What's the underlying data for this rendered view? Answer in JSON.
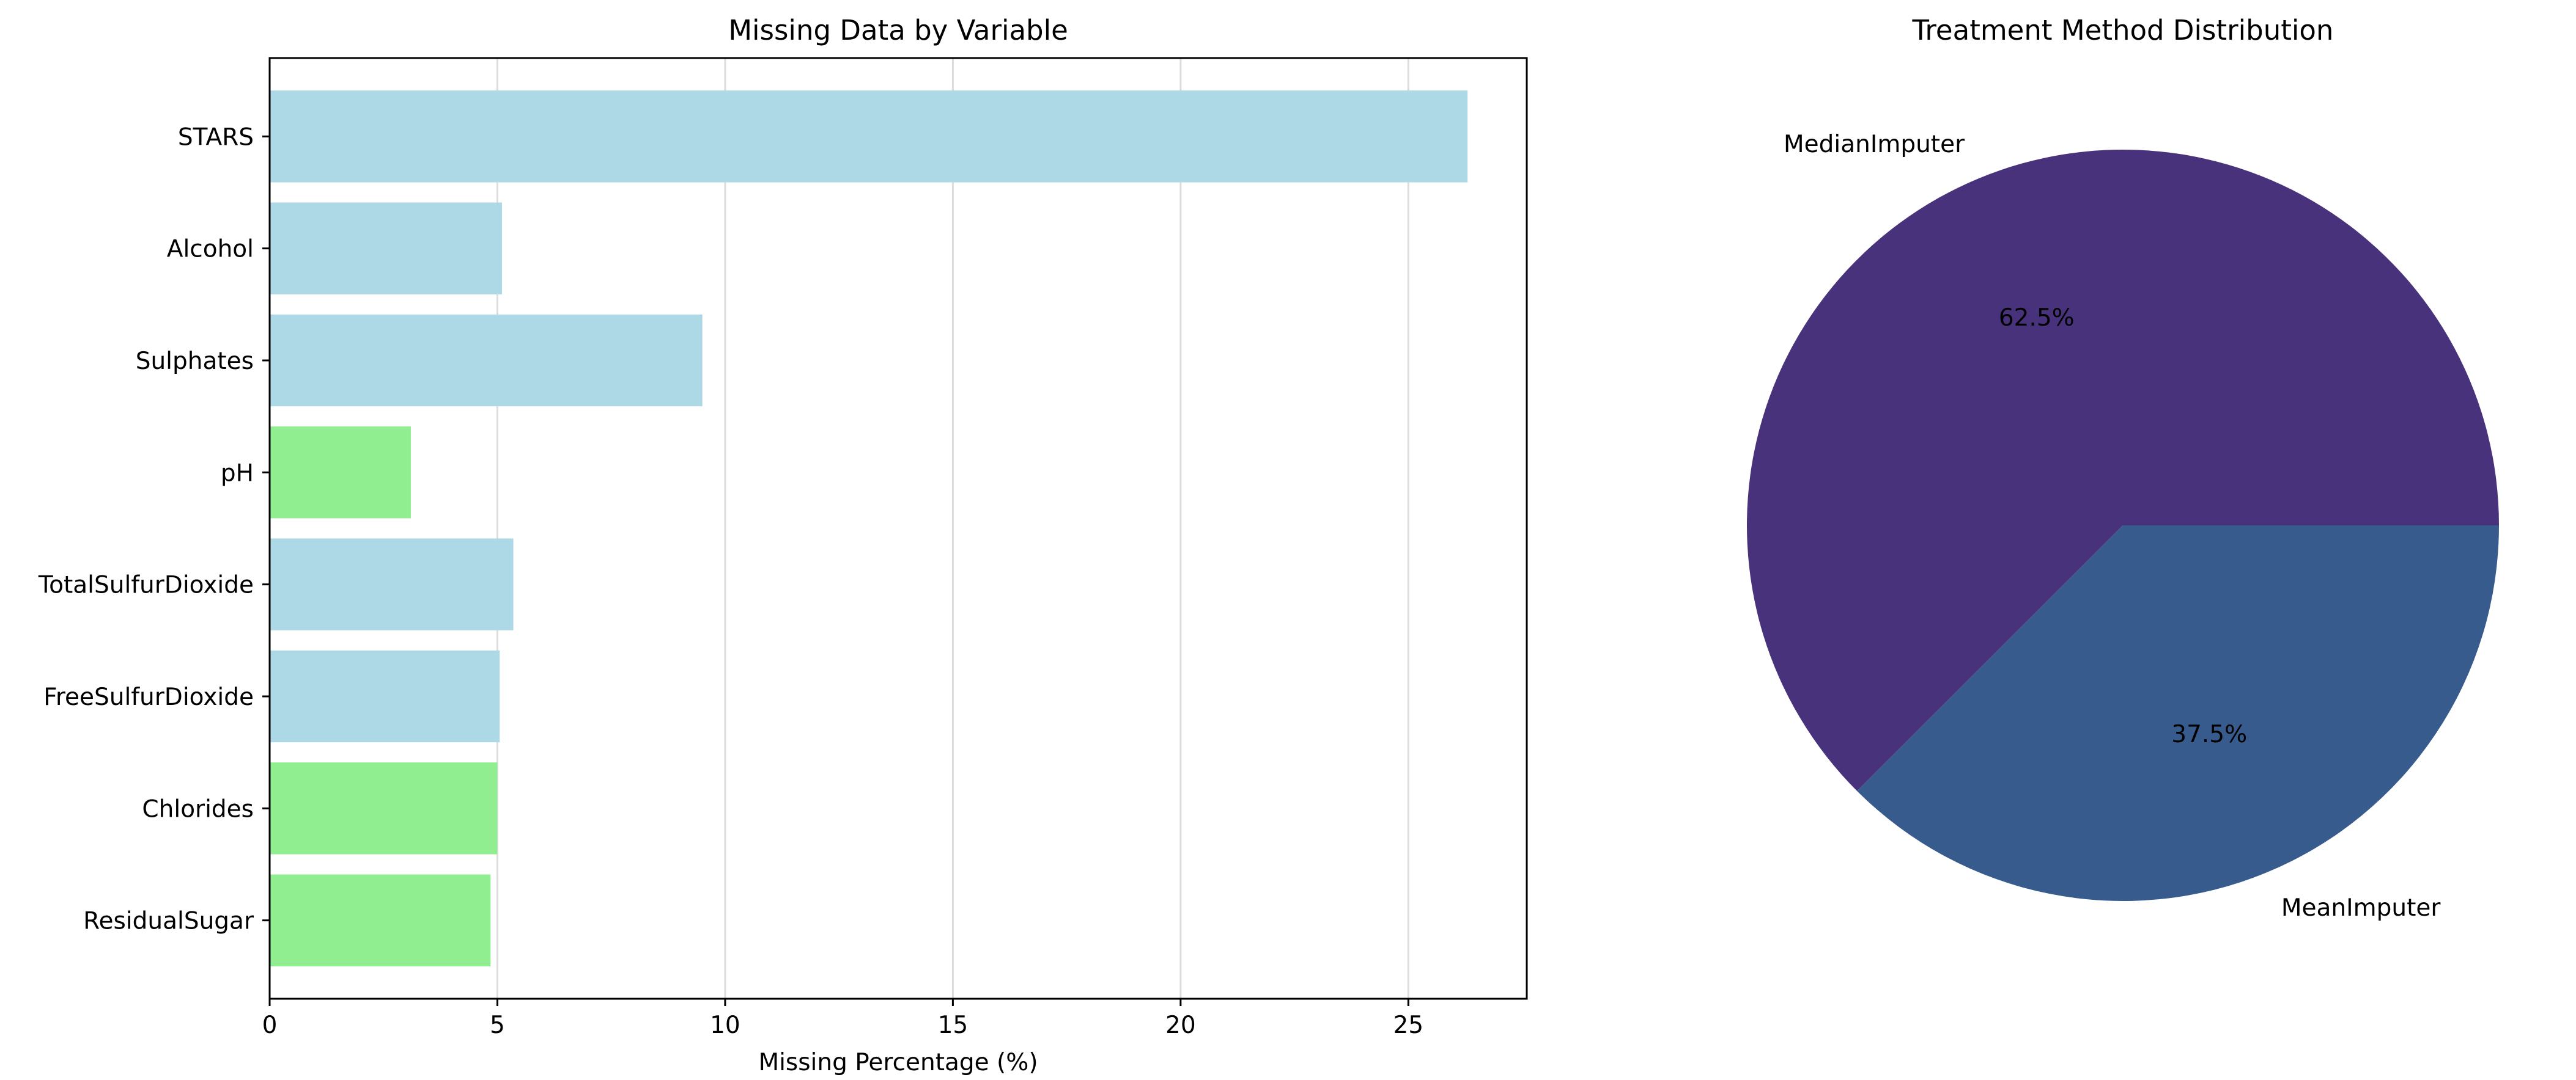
{
  "chart_data": [
    {
      "type": "bar",
      "orientation": "horizontal",
      "title": "Missing Data by Variable",
      "xlabel": "Missing Percentage (%)",
      "ylabel": "",
      "categories": [
        "STARS",
        "Alcohol",
        "Sulphates",
        "pH",
        "TotalSulfurDioxide",
        "FreeSulfurDioxide",
        "Chlorides",
        "ResidualSugar"
      ],
      "values": [
        26.3,
        5.1,
        9.5,
        3.1,
        5.35,
        5.05,
        5.0,
        4.85
      ],
      "bar_colors": [
        "#add8e6",
        "#add8e6",
        "#add8e6",
        "#90ee90",
        "#add8e6",
        "#add8e6",
        "#90ee90",
        "#90ee90"
      ],
      "xlim": [
        0,
        27.6
      ],
      "xticks": [
        0,
        5,
        10,
        15,
        20,
        25
      ],
      "grid": "x-axis vertical lines",
      "legend": "none"
    },
    {
      "type": "pie",
      "title": "Treatment Method Distribution",
      "labels": [
        "MedianImputer",
        "MeanImputer"
      ],
      "values": [
        62.5,
        37.5
      ],
      "autopct_labels": [
        "62.5%",
        "37.5%"
      ],
      "colors": [
        "#48327c",
        "#365b8c"
      ],
      "start_angle_deg": 0,
      "legend": "none"
    }
  ]
}
